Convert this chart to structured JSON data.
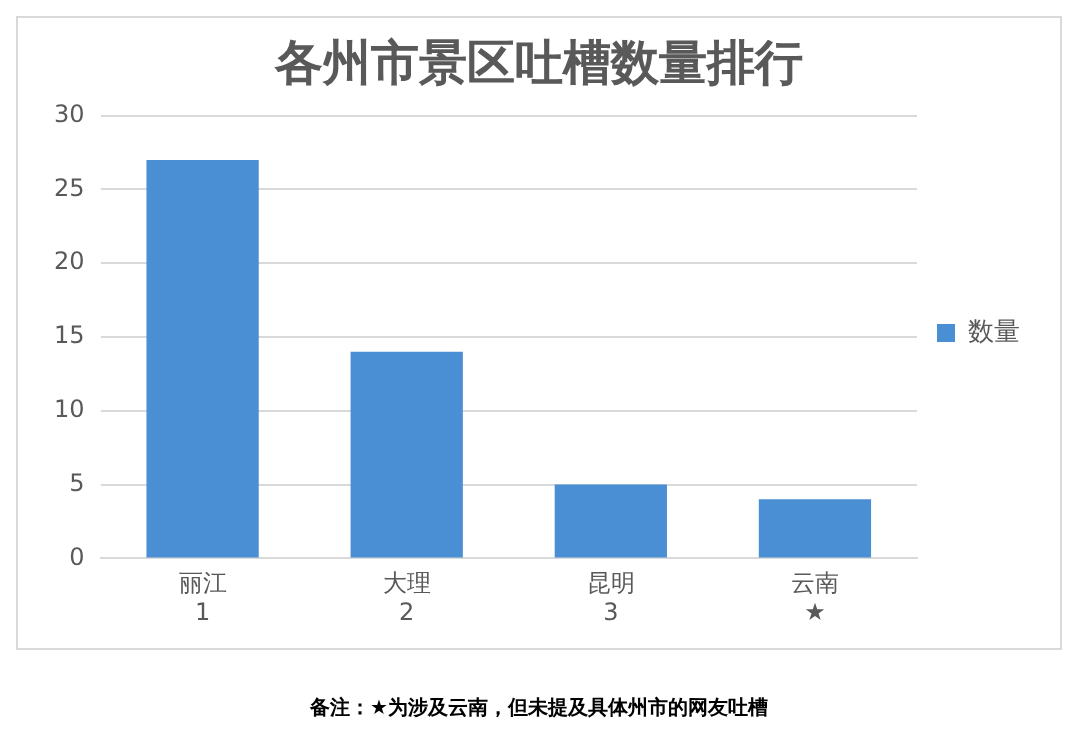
{
  "chart_data": {
    "type": "bar",
    "title": "各州市景区吐槽数量排行",
    "categories": [
      "丽江\n1",
      "大理\n2",
      "昆明\n3",
      "云南\n★"
    ],
    "series": [
      {
        "name": "数量",
        "color": "#4a8fd4",
        "values": [
          27,
          14,
          5,
          4
        ]
      }
    ],
    "ylim": [
      0,
      30
    ],
    "yticks": [
      0,
      5,
      10,
      15,
      20,
      25,
      30
    ],
    "grid": "y",
    "legend": "right",
    "annotations": [
      "备注：★为涉及云南，但未提及具体州市的网友吐槽"
    ]
  }
}
